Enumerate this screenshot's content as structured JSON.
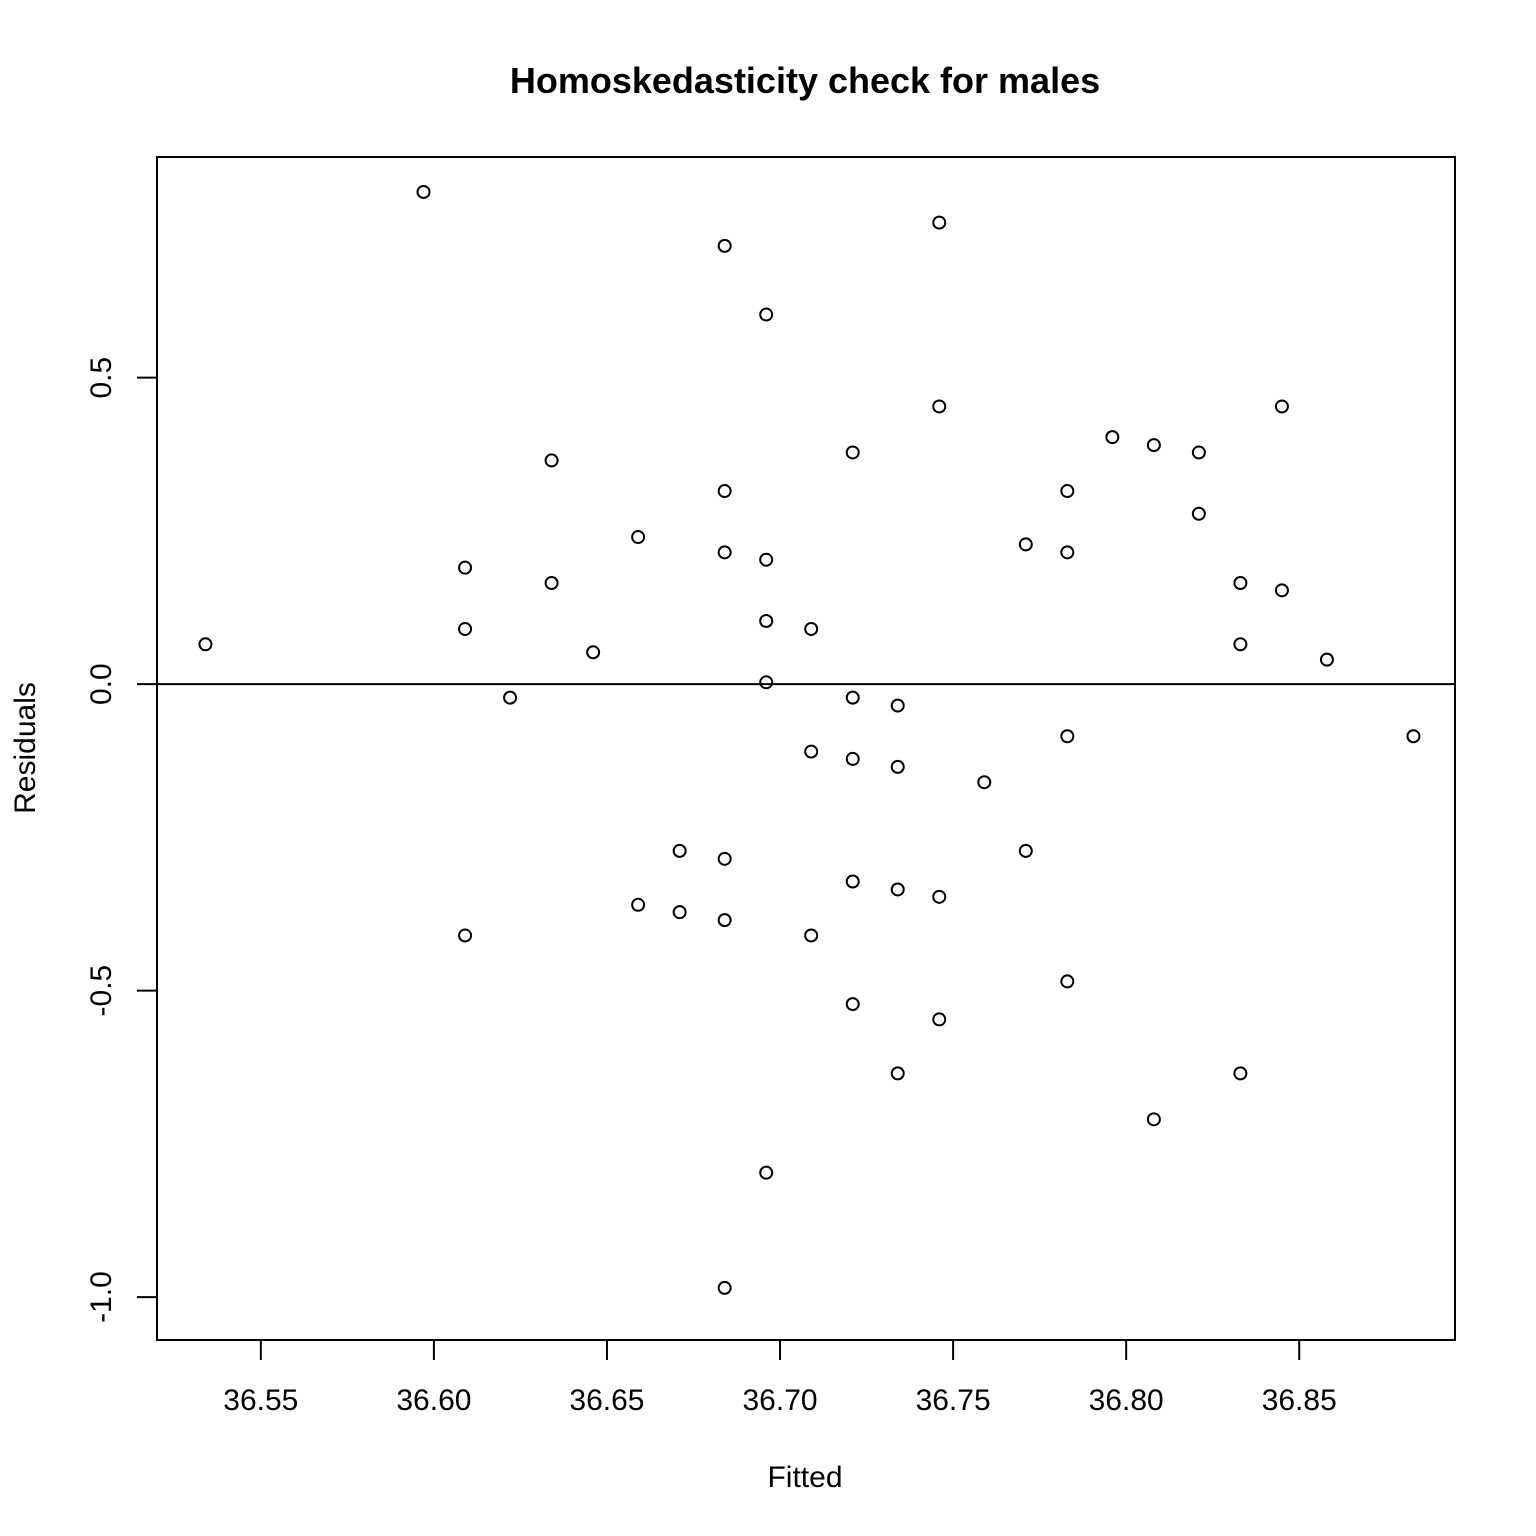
{
  "chart_data": {
    "type": "scatter",
    "title": "Homoskedasticity check for males",
    "xlabel": "Fitted",
    "ylabel": "Residuals",
    "xlim": [
      36.52,
      36.895
    ],
    "ylim": [
      -1.07,
      0.86
    ],
    "xticks": [
      36.55,
      36.6,
      36.65,
      36.7,
      36.75,
      36.8,
      36.85
    ],
    "xtick_labels": [
      "36.55",
      "36.60",
      "36.65",
      "36.70",
      "36.75",
      "36.80",
      "36.85"
    ],
    "yticks": [
      -1.0,
      -0.5,
      0.0,
      0.5
    ],
    "ytick_labels": [
      "-1.0",
      "-0.5",
      "0.0",
      "0.5"
    ],
    "reference_line_y": 0,
    "grid": false,
    "legend": "none",
    "points": [
      {
        "x": 36.534,
        "y": 0.065
      },
      {
        "x": 36.597,
        "y": 0.803
      },
      {
        "x": 36.609,
        "y": 0.19
      },
      {
        "x": 36.609,
        "y": 0.09
      },
      {
        "x": 36.609,
        "y": -0.41
      },
      {
        "x": 36.622,
        "y": -0.022
      },
      {
        "x": 36.634,
        "y": 0.365
      },
      {
        "x": 36.634,
        "y": 0.165
      },
      {
        "x": 36.646,
        "y": 0.052
      },
      {
        "x": 36.659,
        "y": 0.24
      },
      {
        "x": 36.659,
        "y": -0.36
      },
      {
        "x": 36.671,
        "y": -0.272
      },
      {
        "x": 36.671,
        "y": -0.372
      },
      {
        "x": 36.684,
        "y": 0.715
      },
      {
        "x": 36.684,
        "y": 0.315
      },
      {
        "x": 36.684,
        "y": 0.215
      },
      {
        "x": 36.684,
        "y": -0.285
      },
      {
        "x": 36.684,
        "y": -0.385
      },
      {
        "x": 36.684,
        "y": -0.985
      },
      {
        "x": 36.696,
        "y": 0.603
      },
      {
        "x": 36.696,
        "y": 0.203
      },
      {
        "x": 36.696,
        "y": 0.103
      },
      {
        "x": 36.696,
        "y": 0.003
      },
      {
        "x": 36.696,
        "y": -0.797
      },
      {
        "x": 36.709,
        "y": 0.09
      },
      {
        "x": 36.709,
        "y": -0.11
      },
      {
        "x": 36.709,
        "y": -0.41
      },
      {
        "x": 36.721,
        "y": 0.378
      },
      {
        "x": 36.721,
        "y": -0.022
      },
      {
        "x": 36.721,
        "y": -0.122
      },
      {
        "x": 36.721,
        "y": -0.322
      },
      {
        "x": 36.721,
        "y": -0.522
      },
      {
        "x": 36.734,
        "y": -0.035
      },
      {
        "x": 36.734,
        "y": -0.135
      },
      {
        "x": 36.734,
        "y": -0.335
      },
      {
        "x": 36.734,
        "y": -0.635
      },
      {
        "x": 36.746,
        "y": 0.753
      },
      {
        "x": 36.746,
        "y": 0.453
      },
      {
        "x": 36.746,
        "y": -0.347
      },
      {
        "x": 36.746,
        "y": -0.547
      },
      {
        "x": 36.759,
        "y": -0.16
      },
      {
        "x": 36.771,
        "y": 0.228
      },
      {
        "x": 36.771,
        "y": -0.272
      },
      {
        "x": 36.783,
        "y": 0.315
      },
      {
        "x": 36.783,
        "y": 0.215
      },
      {
        "x": 36.783,
        "y": -0.085
      },
      {
        "x": 36.783,
        "y": -0.485
      },
      {
        "x": 36.796,
        "y": 0.403
      },
      {
        "x": 36.808,
        "y": 0.39
      },
      {
        "x": 36.808,
        "y": -0.71
      },
      {
        "x": 36.821,
        "y": 0.378
      },
      {
        "x": 36.821,
        "y": 0.278
      },
      {
        "x": 36.833,
        "y": 0.165
      },
      {
        "x": 36.833,
        "y": 0.065
      },
      {
        "x": 36.833,
        "y": -0.635
      },
      {
        "x": 36.845,
        "y": 0.453
      },
      {
        "x": 36.845,
        "y": 0.153
      },
      {
        "x": 36.858,
        "y": 0.04
      },
      {
        "x": 36.883,
        "y": -0.085
      }
    ]
  }
}
